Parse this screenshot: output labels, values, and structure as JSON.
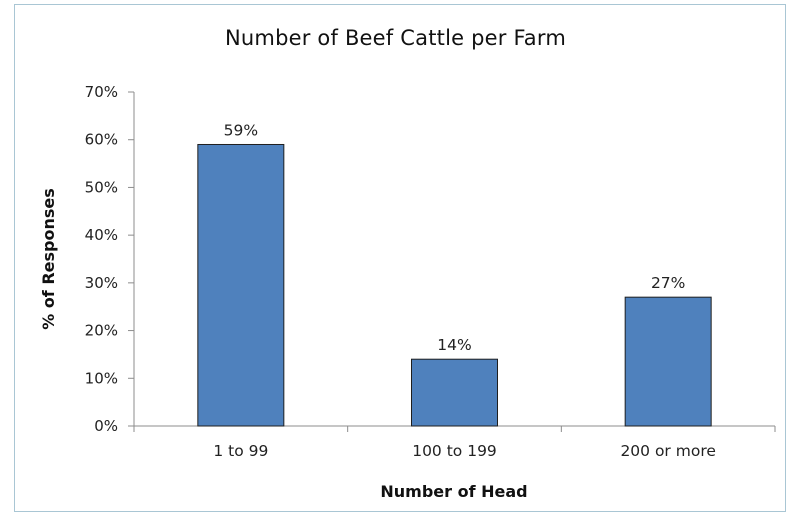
{
  "chart_data": {
    "type": "bar",
    "title": "Number of Beef Cattle per Farm",
    "xlabel": "Number of Head",
    "ylabel": "% of Responses",
    "categories": [
      "1 to 99",
      "100 to 199",
      "200 or more"
    ],
    "values": [
      59,
      14,
      27
    ],
    "data_labels": [
      "59%",
      "14%",
      "27%"
    ],
    "ylim": [
      0,
      70
    ],
    "yticks": [
      0,
      10,
      20,
      30,
      40,
      50,
      60,
      70
    ],
    "ytick_labels": [
      "0%",
      "10%",
      "20%",
      "30%",
      "40%",
      "50%",
      "60%",
      "70%"
    ],
    "grid": false,
    "legend": "none",
    "colors": {
      "bar_fill": "#4f81bd",
      "bar_stroke": "#1f1f1f",
      "axis": "#8c8c8c",
      "frame": "#a9c6d4"
    }
  }
}
